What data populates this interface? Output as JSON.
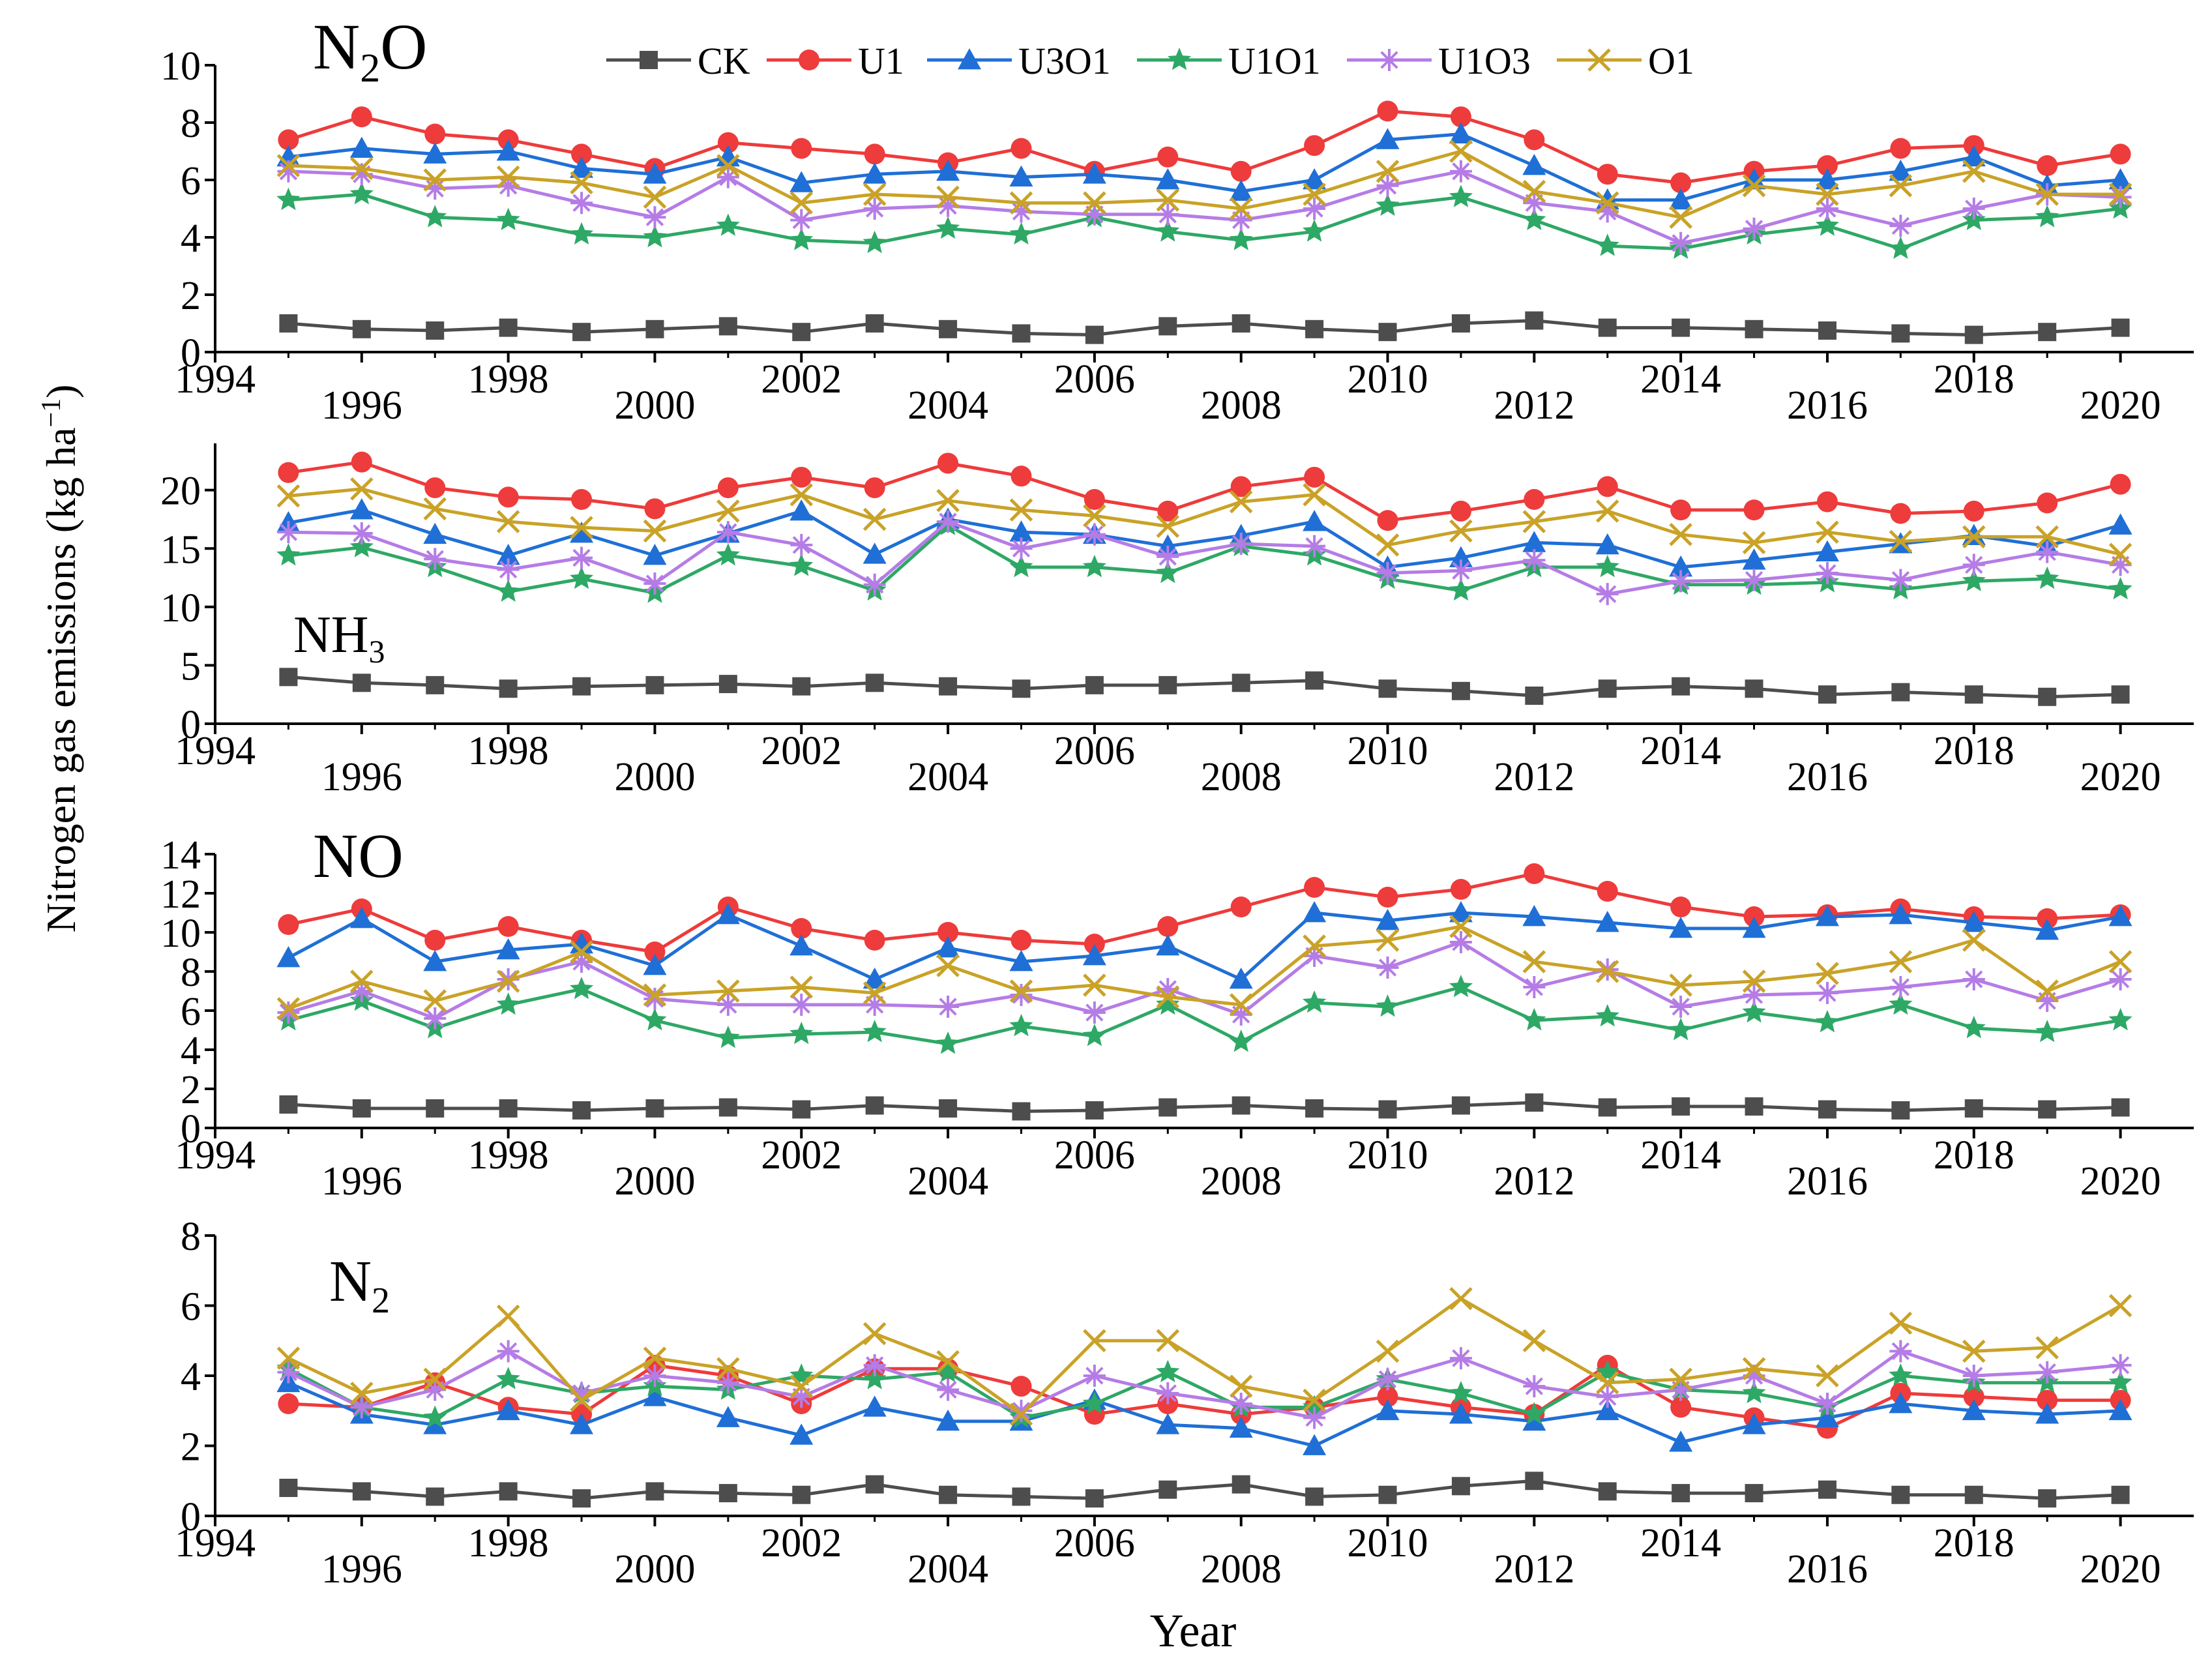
{
  "figure": {
    "ylabel_main": "Nitrogen gas emissions (kg ha",
    "ylabel_sup": "−1",
    "ylabel_close": ")",
    "xlabel": "Year"
  },
  "legend": [
    {
      "name": "CK",
      "color": "#4d4d4d",
      "marker": "square"
    },
    {
      "name": "U1",
      "color": "#ee3b3b",
      "marker": "circle"
    },
    {
      "name": "U3O1",
      "color": "#1f6fd6",
      "marker": "triangle"
    },
    {
      "name": "U1O1",
      "color": "#2ea865",
      "marker": "star"
    },
    {
      "name": "U1O3",
      "color": "#b57ce6",
      "marker": "asterisk"
    },
    {
      "name": "O1",
      "color": "#c9a227",
      "marker": "x"
    }
  ],
  "chart_data": [
    {
      "type": "line",
      "label_base": "N",
      "label_sub": "2",
      "label_tail": "O",
      "xlim": [
        1994,
        2021
      ],
      "ylim": [
        0,
        10
      ],
      "xticks": [
        1994,
        1996,
        1998,
        2000,
        2002,
        2004,
        2006,
        2008,
        2010,
        2012,
        2014,
        2016,
        2018,
        2020
      ],
      "yticks": [
        0,
        2,
        4,
        6,
        8,
        10
      ],
      "x": [
        1995,
        1996,
        1997,
        1998,
        1999,
        2000,
        2001,
        2002,
        2003,
        2004,
        2005,
        2006,
        2007,
        2008,
        2009,
        2010,
        2011,
        2012,
        2013,
        2014,
        2015,
        2016,
        2017,
        2018,
        2019,
        2020
      ],
      "series": [
        {
          "name": "CK",
          "values": [
            1.0,
            0.8,
            0.75,
            0.85,
            0.7,
            0.8,
            0.9,
            0.7,
            1.0,
            0.8,
            0.65,
            0.6,
            0.9,
            1.0,
            0.8,
            0.7,
            1.0,
            1.1,
            0.85,
            0.85,
            0.8,
            0.75,
            0.65,
            0.6,
            0.7,
            0.85
          ]
        },
        {
          "name": "U1",
          "values": [
            7.4,
            8.2,
            7.6,
            7.4,
            6.9,
            6.4,
            7.3,
            7.1,
            6.9,
            6.6,
            7.1,
            6.3,
            6.8,
            6.3,
            7.2,
            8.4,
            8.2,
            7.4,
            6.2,
            5.9,
            6.3,
            6.5,
            7.1,
            7.2,
            6.5,
            6.9
          ]
        },
        {
          "name": "U3O1",
          "values": [
            6.8,
            7.1,
            6.9,
            7.0,
            6.4,
            6.2,
            6.8,
            5.9,
            6.2,
            6.3,
            6.1,
            6.2,
            6.0,
            5.6,
            6.0,
            7.4,
            7.6,
            6.5,
            5.3,
            5.3,
            6.0,
            6.0,
            6.3,
            6.8,
            5.8,
            6.0
          ]
        },
        {
          "name": "U1O1",
          "values": [
            5.3,
            5.5,
            4.7,
            4.6,
            4.1,
            4.0,
            4.4,
            3.9,
            3.8,
            4.3,
            4.1,
            4.7,
            4.2,
            3.9,
            4.2,
            5.1,
            5.4,
            4.6,
            3.7,
            3.6,
            4.1,
            4.4,
            3.6,
            4.6,
            4.7,
            5.0
          ]
        },
        {
          "name": "U1O3",
          "values": [
            6.3,
            6.2,
            5.7,
            5.8,
            5.2,
            4.7,
            6.1,
            4.6,
            5.0,
            5.1,
            4.9,
            4.8,
            4.8,
            4.6,
            5.0,
            5.8,
            6.3,
            5.2,
            4.9,
            3.8,
            4.3,
            5.0,
            4.4,
            5.0,
            5.5,
            5.4
          ]
        },
        {
          "name": "O1",
          "values": [
            6.5,
            6.4,
            6.0,
            6.1,
            5.9,
            5.4,
            6.5,
            5.2,
            5.5,
            5.4,
            5.2,
            5.2,
            5.3,
            5.0,
            5.5,
            6.3,
            7.0,
            5.6,
            5.2,
            4.7,
            5.8,
            5.5,
            5.8,
            6.3,
            5.5,
            5.5
          ]
        }
      ]
    },
    {
      "type": "line",
      "label_base": "NH",
      "label_sub": "3",
      "label_tail": "",
      "xlim": [
        1994,
        2021
      ],
      "ylim": [
        0,
        24
      ],
      "xticks": [
        1994,
        1996,
        1998,
        2000,
        2002,
        2004,
        2006,
        2008,
        2010,
        2012,
        2014,
        2016,
        2018,
        2020
      ],
      "yticks": [
        0,
        5,
        10,
        15,
        20
      ],
      "x": [
        1995,
        1996,
        1997,
        1998,
        1999,
        2000,
        2001,
        2002,
        2003,
        2004,
        2005,
        2006,
        2007,
        2008,
        2009,
        2010,
        2011,
        2012,
        2013,
        2014,
        2015,
        2016,
        2017,
        2018,
        2019,
        2020
      ],
      "series": [
        {
          "name": "CK",
          "values": [
            4.0,
            3.5,
            3.3,
            3.0,
            3.2,
            3.3,
            3.4,
            3.2,
            3.5,
            3.2,
            3.0,
            3.3,
            3.3,
            3.5,
            3.7,
            3.0,
            2.8,
            2.4,
            3.0,
            3.2,
            3.0,
            2.5,
            2.7,
            2.5,
            2.3,
            2.5
          ]
        },
        {
          "name": "U1",
          "values": [
            21.5,
            22.4,
            20.2,
            19.4,
            19.2,
            18.4,
            20.2,
            21.1,
            20.2,
            22.3,
            21.2,
            19.2,
            18.2,
            20.3,
            21.1,
            17.4,
            18.2,
            19.2,
            20.3,
            18.3,
            18.3,
            19.0,
            18.0,
            18.2,
            18.9,
            20.5
          ]
        },
        {
          "name": "U3O1",
          "values": [
            17.2,
            18.3,
            16.2,
            14.4,
            16.3,
            14.4,
            16.3,
            18.2,
            14.5,
            17.5,
            16.4,
            16.2,
            15.2,
            16.1,
            17.3,
            13.4,
            14.2,
            15.5,
            15.3,
            13.4,
            14.0,
            14.7,
            15.4,
            16.1,
            15.2,
            17.0
          ]
        },
        {
          "name": "U1O1",
          "values": [
            14.4,
            15.1,
            13.4,
            11.3,
            12.4,
            11.2,
            14.4,
            13.5,
            11.4,
            17.0,
            13.4,
            13.4,
            12.9,
            15.2,
            14.4,
            12.4,
            11.4,
            13.4,
            13.4,
            11.9,
            11.9,
            12.1,
            11.5,
            12.2,
            12.4,
            11.5
          ]
        },
        {
          "name": "U1O3",
          "values": [
            16.4,
            16.3,
            14.1,
            13.2,
            14.2,
            12.0,
            16.4,
            15.3,
            11.9,
            17.3,
            15.0,
            16.2,
            14.3,
            15.4,
            15.2,
            12.9,
            13.1,
            14.0,
            11.1,
            12.2,
            12.3,
            12.9,
            12.3,
            13.6,
            14.7,
            13.6
          ]
        },
        {
          "name": "O1",
          "values": [
            19.5,
            20.1,
            18.4,
            17.3,
            16.8,
            16.5,
            18.2,
            19.6,
            17.5,
            19.1,
            18.3,
            17.8,
            16.9,
            19.0,
            19.6,
            15.3,
            16.5,
            17.3,
            18.2,
            16.2,
            15.5,
            16.4,
            15.6,
            16.0,
            16.0,
            14.5
          ]
        }
      ]
    },
    {
      "type": "line",
      "label_base": "NO",
      "label_sub": "",
      "label_tail": "",
      "xlim": [
        1994,
        2021
      ],
      "ylim": [
        0,
        14
      ],
      "xticks": [
        1994,
        1996,
        1998,
        2000,
        2002,
        2004,
        2006,
        2008,
        2010,
        2012,
        2014,
        2016,
        2018,
        2020
      ],
      "yticks": [
        0,
        2,
        4,
        6,
        8,
        10,
        12,
        14
      ],
      "x": [
        1995,
        1996,
        1997,
        1998,
        1999,
        2000,
        2001,
        2002,
        2003,
        2004,
        2005,
        2006,
        2007,
        2008,
        2009,
        2010,
        2011,
        2012,
        2013,
        2014,
        2015,
        2016,
        2017,
        2018,
        2019,
        2020
      ],
      "series": [
        {
          "name": "CK",
          "values": [
            1.2,
            1.0,
            1.0,
            1.0,
            0.9,
            1.0,
            1.05,
            0.95,
            1.15,
            1.0,
            0.85,
            0.9,
            1.05,
            1.15,
            1.0,
            0.95,
            1.15,
            1.3,
            1.05,
            1.1,
            1.1,
            0.95,
            0.9,
            1.0,
            0.95,
            1.05
          ]
        },
        {
          "name": "U1",
          "values": [
            10.4,
            11.2,
            9.6,
            10.3,
            9.6,
            9.0,
            11.3,
            10.2,
            9.6,
            10.0,
            9.6,
            9.4,
            10.3,
            11.3,
            12.3,
            11.8,
            12.2,
            13.0,
            12.1,
            11.3,
            10.8,
            10.9,
            11.2,
            10.8,
            10.7,
            10.9
          ]
        },
        {
          "name": "U3O1",
          "values": [
            8.7,
            10.7,
            8.5,
            9.1,
            9.4,
            8.3,
            10.9,
            9.3,
            7.6,
            9.2,
            8.5,
            8.8,
            9.3,
            7.6,
            11.0,
            10.6,
            11.0,
            10.8,
            10.5,
            10.2,
            10.2,
            10.8,
            10.9,
            10.5,
            10.1,
            10.8
          ]
        },
        {
          "name": "U1O1",
          "values": [
            5.5,
            6.5,
            5.1,
            6.3,
            7.1,
            5.5,
            4.6,
            4.8,
            4.9,
            4.3,
            5.2,
            4.7,
            6.3,
            4.4,
            6.4,
            6.2,
            7.2,
            5.5,
            5.7,
            5.0,
            5.9,
            5.4,
            6.3,
            5.1,
            4.9,
            5.5
          ]
        },
        {
          "name": "U1O3",
          "values": [
            5.9,
            7.0,
            5.6,
            7.6,
            8.5,
            6.6,
            6.3,
            6.3,
            6.3,
            6.2,
            6.8,
            5.9,
            7.1,
            5.8,
            8.8,
            8.2,
            9.5,
            7.2,
            8.1,
            6.2,
            6.8,
            6.9,
            7.2,
            7.6,
            6.5,
            7.6
          ]
        },
        {
          "name": "O1",
          "values": [
            6.1,
            7.5,
            6.5,
            7.5,
            9.0,
            6.8,
            7.0,
            7.2,
            6.9,
            8.3,
            7.0,
            7.3,
            6.7,
            6.3,
            9.3,
            9.6,
            10.3,
            8.5,
            8.0,
            7.3,
            7.5,
            7.9,
            8.5,
            9.6,
            7.0,
            8.5
          ]
        }
      ]
    },
    {
      "type": "line",
      "label_base": "N",
      "label_sub": "2",
      "label_tail": "",
      "xlim": [
        1994,
        2021
      ],
      "ylim": [
        0,
        8
      ],
      "xticks": [
        1994,
        1996,
        1998,
        2000,
        2002,
        2004,
        2006,
        2008,
        2010,
        2012,
        2014,
        2016,
        2018,
        2020
      ],
      "yticks": [
        0,
        2,
        4,
        6,
        8
      ],
      "x": [
        1995,
        1996,
        1997,
        1998,
        1999,
        2000,
        2001,
        2002,
        2003,
        2004,
        2005,
        2006,
        2007,
        2008,
        2009,
        2010,
        2011,
        2012,
        2013,
        2014,
        2015,
        2016,
        2017,
        2018,
        2019,
        2020
      ],
      "series": [
        {
          "name": "CK",
          "values": [
            0.8,
            0.7,
            0.55,
            0.7,
            0.5,
            0.7,
            0.65,
            0.6,
            0.9,
            0.6,
            0.55,
            0.5,
            0.75,
            0.9,
            0.55,
            0.6,
            0.85,
            1.0,
            0.7,
            0.65,
            0.65,
            0.75,
            0.6,
            0.6,
            0.5,
            0.6
          ]
        },
        {
          "name": "U1",
          "values": [
            3.2,
            3.1,
            3.8,
            3.1,
            2.9,
            4.3,
            4.0,
            3.2,
            4.2,
            4.2,
            3.7,
            2.9,
            3.2,
            2.9,
            3.1,
            3.4,
            3.1,
            2.9,
            4.3,
            3.1,
            2.8,
            2.5,
            3.5,
            3.4,
            3.3,
            3.3
          ]
        },
        {
          "name": "U3O1",
          "values": [
            3.8,
            2.9,
            2.6,
            3.0,
            2.6,
            3.4,
            2.8,
            2.3,
            3.1,
            2.7,
            2.7,
            3.3,
            2.6,
            2.5,
            2.0,
            3.0,
            2.9,
            2.7,
            3.0,
            2.1,
            2.6,
            2.8,
            3.2,
            3.0,
            2.9,
            3.0
          ]
        },
        {
          "name": "U1O1",
          "values": [
            4.2,
            3.1,
            2.8,
            3.9,
            3.5,
            3.7,
            3.6,
            4.0,
            3.9,
            4.1,
            2.8,
            3.2,
            4.1,
            3.1,
            3.1,
            3.9,
            3.5,
            2.9,
            4.1,
            3.6,
            3.5,
            3.1,
            4.0,
            3.8,
            3.8,
            3.8
          ]
        },
        {
          "name": "U1O3",
          "values": [
            4.1,
            3.1,
            3.6,
            4.7,
            3.5,
            4.0,
            3.8,
            3.4,
            4.3,
            3.6,
            3.0,
            4.0,
            3.5,
            3.2,
            2.8,
            3.9,
            4.5,
            3.7,
            3.4,
            3.6,
            4.0,
            3.2,
            4.7,
            4.0,
            4.1,
            4.3
          ]
        },
        {
          "name": "O1",
          "values": [
            4.5,
            3.5,
            3.9,
            5.7,
            3.3,
            4.5,
            4.2,
            3.7,
            5.2,
            4.4,
            2.9,
            5.0,
            5.0,
            3.7,
            3.3,
            4.7,
            6.2,
            5.0,
            3.8,
            3.9,
            4.2,
            4.0,
            5.5,
            4.7,
            4.8,
            6.0
          ]
        }
      ]
    }
  ]
}
